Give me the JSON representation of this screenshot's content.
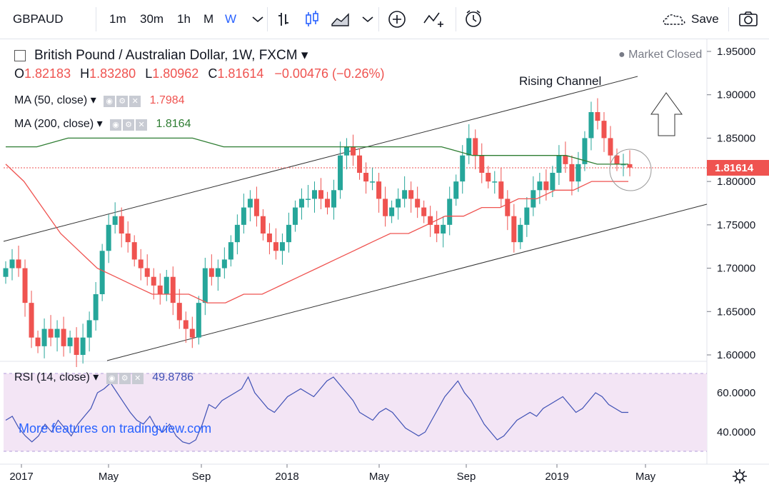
{
  "toolbar": {
    "symbol": "GBPAUD",
    "intervals": [
      "1m",
      "30m",
      "1h",
      "M",
      "W"
    ],
    "active_interval": "W",
    "save_label": "Save",
    "icons": [
      "bar-chart-icon",
      "candlestick-icon",
      "area-chart-icon",
      "add-indicator-icon",
      "indicators-icon",
      "alert-icon",
      "cloud-icon",
      "camera-icon",
      "chevron-down-icon"
    ]
  },
  "legend": {
    "title": "British Pound / Australian Dollar, 1W, FXCM",
    "o_label": "O",
    "o_value": "1.82183",
    "h_label": "H",
    "h_value": "1.83280",
    "l_label": "L",
    "l_value": "1.80962",
    "c_label": "C",
    "c_value": "1.81614",
    "change": "−0.00476 (−0.26%)",
    "ma50_label": "MA (50, close)",
    "ma50_value": "1.7984",
    "ma200_label": "MA (200, close)",
    "ma200_value": "1.8164",
    "market_status": "Market Closed"
  },
  "rsi": {
    "label": "RSI (14, close)",
    "value": "49.8786"
  },
  "annotation": "Rising Channel",
  "watermark": "More features on tradingview.com",
  "price_tag": "1.81614",
  "colors": {
    "up": "#26a69a",
    "down": "#ef5350",
    "ma50": "#ef5350",
    "ma200": "#2e7d32",
    "rsi": "#3f51b5",
    "rsi_band": "#f3e5f5"
  },
  "chart_data": {
    "type": "candlestick",
    "price_axis": {
      "ticks": [
        "1.95000",
        "1.90000",
        "1.85000",
        "1.80000",
        "1.75000",
        "1.70000",
        "1.65000",
        "1.60000"
      ]
    },
    "rsi_axis": {
      "ticks": [
        "60.0000",
        "40.0000"
      ]
    },
    "x_ticks": [
      "2017",
      "May",
      "Sep",
      "2018",
      "May",
      "Sep",
      "2019",
      "May"
    ],
    "close_series": [
      1.7,
      1.71,
      1.7,
      1.66,
      1.62,
      1.61,
      1.63,
      1.62,
      1.63,
      1.61,
      1.62,
      1.6,
      1.62,
      1.64,
      1.67,
      1.72,
      1.75,
      1.76,
      1.74,
      1.73,
      1.71,
      1.7,
      1.69,
      1.68,
      1.67,
      1.69,
      1.66,
      1.64,
      1.63,
      1.62,
      1.66,
      1.7,
      1.69,
      1.7,
      1.71,
      1.73,
      1.75,
      1.77,
      1.78,
      1.76,
      1.74,
      1.73,
      1.72,
      1.73,
      1.75,
      1.77,
      1.78,
      1.78,
      1.79,
      1.78,
      1.77,
      1.79,
      1.83,
      1.84,
      1.83,
      1.81,
      1.8,
      1.8,
      1.78,
      1.76,
      1.77,
      1.78,
      1.79,
      1.78,
      1.77,
      1.76,
      1.75,
      1.74,
      1.75,
      1.78,
      1.8,
      1.83,
      1.85,
      1.83,
      1.81,
      1.8,
      1.8,
      1.78,
      1.76,
      1.73,
      1.75,
      1.77,
      1.79,
      1.8,
      1.79,
      1.81,
      1.83,
      1.82,
      1.8,
      1.82,
      1.85,
      1.88,
      1.87,
      1.85,
      1.83,
      1.82,
      1.82,
      1.816
    ],
    "ma50_series": [
      1.82,
      1.8,
      1.77,
      1.74,
      1.72,
      1.7,
      1.69,
      1.68,
      1.67,
      1.67,
      1.67,
      1.66,
      1.66,
      1.67,
      1.67,
      1.68,
      1.69,
      1.7,
      1.71,
      1.72,
      1.73,
      1.74,
      1.74,
      1.75,
      1.76,
      1.76,
      1.77,
      1.77,
      1.78,
      1.78,
      1.79,
      1.79,
      1.8,
      1.8,
      1.8
    ],
    "ma200_series": [
      1.84,
      1.84,
      1.85,
      1.85,
      1.85,
      1.85,
      1.85,
      1.84,
      1.84,
      1.84,
      1.84,
      1.84,
      1.84,
      1.84,
      1.84,
      1.83,
      1.83,
      1.83,
      1.83,
      1.82,
      1.82
    ],
    "rsi_series": [
      46,
      48,
      42,
      38,
      35,
      38,
      44,
      40,
      46,
      42,
      38,
      44,
      48,
      52,
      60,
      62,
      65,
      60,
      55,
      50,
      46,
      44,
      48,
      42,
      40,
      44,
      38,
      35,
      34,
      36,
      44,
      54,
      52,
      56,
      58,
      60,
      62,
      68,
      60,
      56,
      52,
      50,
      54,
      58,
      60,
      62,
      60,
      58,
      62,
      66,
      68,
      64,
      60,
      56,
      50,
      48,
      46,
      50,
      52,
      50,
      46,
      42,
      40,
      38,
      40,
      46,
      52,
      58,
      62,
      66,
      60,
      56,
      50,
      44,
      40,
      36,
      38,
      42,
      46,
      48,
      50,
      48,
      52,
      54,
      56,
      58,
      54,
      50,
      52,
      56,
      60,
      58,
      54,
      52,
      50,
      50
    ]
  }
}
